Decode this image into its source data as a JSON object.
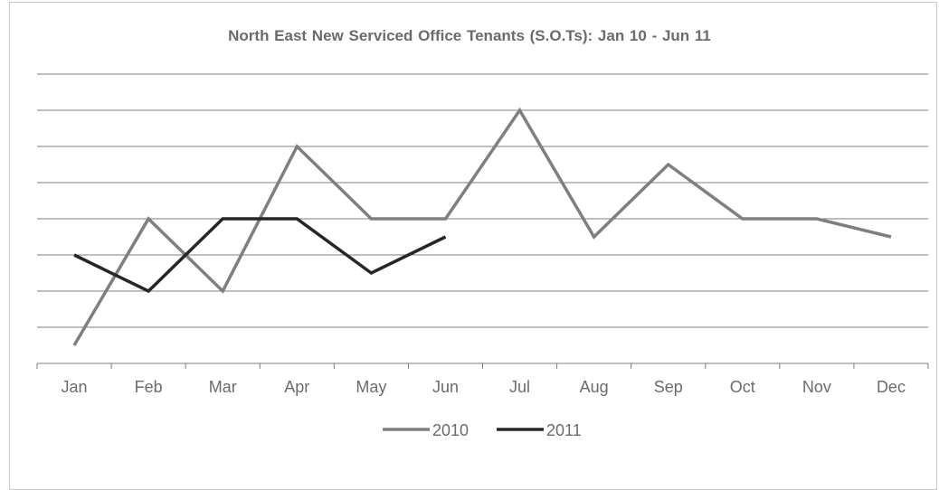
{
  "chart_data": {
    "type": "line",
    "title": "North East New Serviced Office  Tenants (S.O.Ts): Jan 10 - Jun 11",
    "xlabel": "",
    "ylabel": "",
    "categories": [
      "Jan",
      "Feb",
      "Mar",
      "Apr",
      "May",
      "Jun",
      "Jul",
      "Aug",
      "Sep",
      "Oct",
      "Nov",
      "Dec"
    ],
    "ylim": [
      0,
      8
    ],
    "grid": true,
    "legend": "bottom",
    "series": [
      {
        "name": "2010",
        "color": "#7f7f7f",
        "values": [
          0.5,
          4,
          2,
          6,
          4,
          4,
          7,
          3.5,
          5.5,
          4,
          4,
          3.5
        ]
      },
      {
        "name": "2011",
        "color": "#262626",
        "values": [
          3,
          2,
          4,
          4,
          2.5,
          3.5,
          null,
          null,
          null,
          null,
          null,
          null
        ]
      }
    ]
  }
}
